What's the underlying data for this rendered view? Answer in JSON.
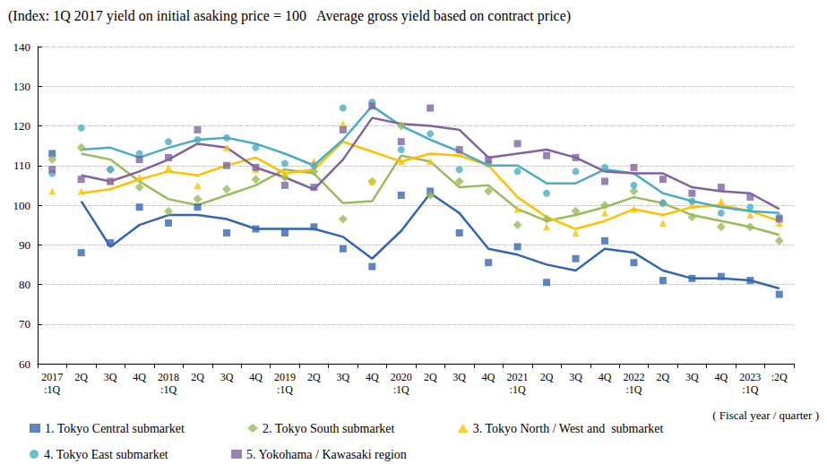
{
  "chart_data": {
    "type": "line",
    "title": "(Index: 1Q 2017 yield on initial asaking price = 100   Average gross yield based on contract price)",
    "x_label": "( Fiscal year / quarter )",
    "categories": [
      "2017\n:1Q",
      "2Q",
      "3Q",
      "4Q",
      "2018\n:1Q",
      "2Q",
      "3Q",
      "4Q",
      "2019\n:1Q",
      "2Q",
      "3Q",
      "4Q",
      "2020\n:1Q",
      "2Q",
      "3Q",
      "4Q",
      "2021\n:1Q",
      "2Q",
      "3Q",
      "4Q",
      "2022\n:1Q",
      "2Q",
      "3Q",
      "4Q",
      "2023\n:1Q",
      ":2Q"
    ],
    "ylim": [
      60,
      140
    ],
    "yticks": [
      60,
      70,
      80,
      90,
      100,
      110,
      120,
      130,
      140
    ],
    "grid": true,
    "legend": "bottom",
    "series": [
      {
        "name": "1. Tokyo Central submarket",
        "color": "#3366b3",
        "marker": "square",
        "values": [
          113,
          88,
          90.5,
          99.5,
          95.5,
          99.5,
          93,
          94,
          93,
          94.5,
          89,
          84.5,
          102.5,
          103.5,
          93,
          85.5,
          89.5,
          80.5,
          86.5,
          91,
          85.5,
          81,
          81.5,
          82,
          81,
          77.5
        ],
        "line_values": [
          null,
          101,
          89.5,
          95,
          97.5,
          97.5,
          96.5,
          94,
          94,
          94,
          92,
          86.5,
          93.5,
          103,
          98,
          89,
          87.5,
          85,
          83.5,
          89,
          88,
          83.5,
          81.5,
          81.5,
          81,
          79
        ]
      },
      {
        "name": "2. Tokyo South submarket",
        "color": "#9bbb59",
        "marker": "diamond",
        "values": [
          111.5,
          114.5,
          109,
          104.5,
          98.5,
          101.5,
          104,
          106.5,
          107,
          108.5,
          96.5,
          106,
          120,
          102.5,
          106,
          103.5,
          95,
          96.5,
          98.5,
          100,
          103.5,
          100.5,
          97,
          94.5,
          94.5,
          91
        ],
        "line_values": [
          null,
          113,
          111.5,
          106,
          101.5,
          100,
          102.5,
          105,
          109,
          108,
          100.5,
          101,
          112.5,
          111,
          104.5,
          105,
          99,
          96,
          97.5,
          99.5,
          102,
          100.5,
          97.5,
          96,
          94.5,
          92.5
        ]
      },
      {
        "name": "3. Tokyo North / West and  submarket",
        "color": "#ffc000",
        "marker": "triangle",
        "values": [
          103.5,
          103.5,
          106,
          107,
          109.5,
          105,
          114.5,
          109,
          108,
          111,
          120.5,
          106,
          111,
          111,
          113,
          110.5,
          99,
          94.5,
          93,
          98,
          99,
          95.5,
          100,
          101,
          97.5,
          95.5
        ],
        "line_values": [
          null,
          103,
          104,
          106.5,
          108.5,
          107.5,
          110,
          112,
          108,
          109,
          116,
          113.5,
          111,
          113,
          112.5,
          110,
          102,
          97,
          94,
          96,
          99,
          97.5,
          99.5,
          100,
          98.5,
          96
        ]
      },
      {
        "name": "4. Tokyo East submarket",
        "color": "#4bacc6",
        "marker": "circle",
        "values": [
          108,
          119.5,
          109,
          113,
          116,
          116.5,
          117,
          114.5,
          110.5,
          110,
          124.5,
          126,
          114,
          118,
          109,
          110.5,
          108.5,
          103,
          108.5,
          109.5,
          105,
          100.5,
          101,
          98,
          99.5,
          97
        ],
        "line_values": [
          null,
          114,
          114.5,
          112,
          114.5,
          116.5,
          117,
          115.5,
          113,
          110,
          116.5,
          125,
          120,
          116.5,
          113.5,
          110,
          110,
          105.5,
          105.5,
          109,
          108,
          103,
          101,
          99.5,
          98.5,
          98
        ]
      },
      {
        "name": "5. Yokohama / Kawasaki region",
        "color": "#8064a2",
        "marker": "square",
        "values": [
          109,
          106.5,
          106,
          111.5,
          112,
          119,
          110,
          109.5,
          105,
          104.5,
          119,
          125,
          116,
          124.5,
          114,
          111.5,
          115.5,
          112.5,
          112,
          106,
          109.5,
          106.5,
          103,
          104.5,
          102,
          96.5
        ],
        "line_values": [
          null,
          107.5,
          106,
          108.5,
          111.5,
          115.5,
          114.5,
          109.5,
          107,
          104,
          111.5,
          122,
          120.5,
          120,
          119,
          112,
          113,
          114,
          112,
          108.5,
          108,
          108,
          104.5,
          103.5,
          103,
          99
        ]
      }
    ]
  }
}
